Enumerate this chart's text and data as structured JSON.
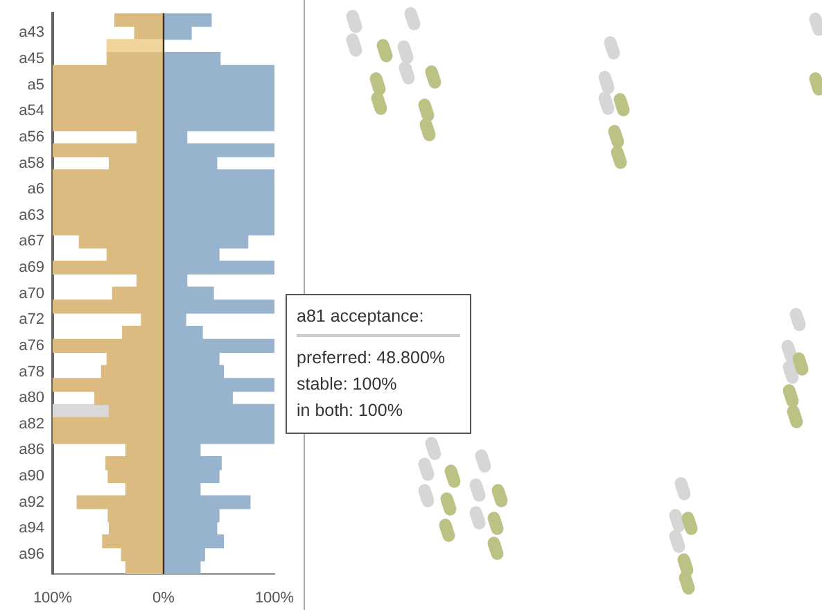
{
  "chart_data": {
    "type": "bar",
    "orientation": "horizontal",
    "stacked": true,
    "categories": [
      null,
      "a43",
      null,
      "a45",
      null,
      "a5",
      null,
      "a54",
      null,
      "a56",
      null,
      "a58",
      null,
      "a6",
      null,
      "a63",
      null,
      "a67",
      null,
      "a69",
      null,
      "a70",
      null,
      "a72",
      null,
      "a76",
      null,
      "a78",
      null,
      "a80",
      null,
      "a82",
      null,
      "a86",
      null,
      "a90",
      null,
      "a92",
      null,
      "a94",
      null,
      "a96",
      null
    ],
    "series": [
      {
        "color": "#dcbb80",
        "colors": [
          null,
          null,
          "#f0d49c",
          null,
          null,
          null,
          null,
          null,
          null,
          null,
          null,
          null,
          null,
          null,
          null,
          null,
          null,
          null,
          null,
          null,
          null,
          null,
          null,
          null,
          null,
          null,
          null,
          null,
          null,
          null,
          null,
          null,
          null,
          null,
          null,
          null,
          null,
          null,
          null,
          null,
          null,
          null,
          null
        ],
        "values": [
          -44,
          -26,
          -51,
          -51,
          -100,
          -100,
          -100,
          -100,
          -100,
          -24,
          -100,
          -49,
          -100,
          -100,
          -100,
          -100,
          -100,
          -76,
          -51,
          -100,
          -24,
          -46,
          -100,
          -20,
          -37,
          -100,
          -51,
          -56,
          -100,
          -62,
          -49,
          -100,
          -100,
          -34,
          -52,
          -50,
          -34,
          -78,
          -50,
          -49,
          -55,
          -38,
          -34
        ]
      },
      {
        "color": "#d9d9d9",
        "values": [
          null,
          null,
          null,
          null,
          null,
          null,
          null,
          null,
          null,
          null,
          null,
          null,
          null,
          null,
          null,
          null,
          null,
          null,
          null,
          null,
          null,
          null,
          null,
          null,
          null,
          null,
          null,
          null,
          null,
          null,
          -51,
          null,
          null,
          null,
          null,
          null,
          null,
          null,
          null,
          null,
          null,
          null,
          null
        ]
      },
      {
        "color": "#98b3cd",
        "values": [
          43,
          25,
          null,
          51,
          100,
          100,
          100,
          100,
          100,
          21,
          100,
          48,
          100,
          100,
          100,
          100,
          100,
          76,
          50,
          100,
          21,
          45,
          100,
          20,
          35,
          100,
          50,
          54,
          100,
          62,
          100,
          100,
          100,
          33,
          52,
          50,
          33,
          78,
          50,
          48,
          54,
          37,
          33
        ]
      }
    ],
    "xlim": [
      -100,
      100
    ],
    "xticks": [
      {
        "value": -100,
        "label": "100%"
      },
      {
        "value": 0,
        "label": "0%"
      },
      {
        "value": 100,
        "label": "100%"
      }
    ],
    "annotations": [
      "a81 acceptance:",
      "preferred: 48.800%",
      "stable: 100%",
      "in both: 100%"
    ]
  }
}
